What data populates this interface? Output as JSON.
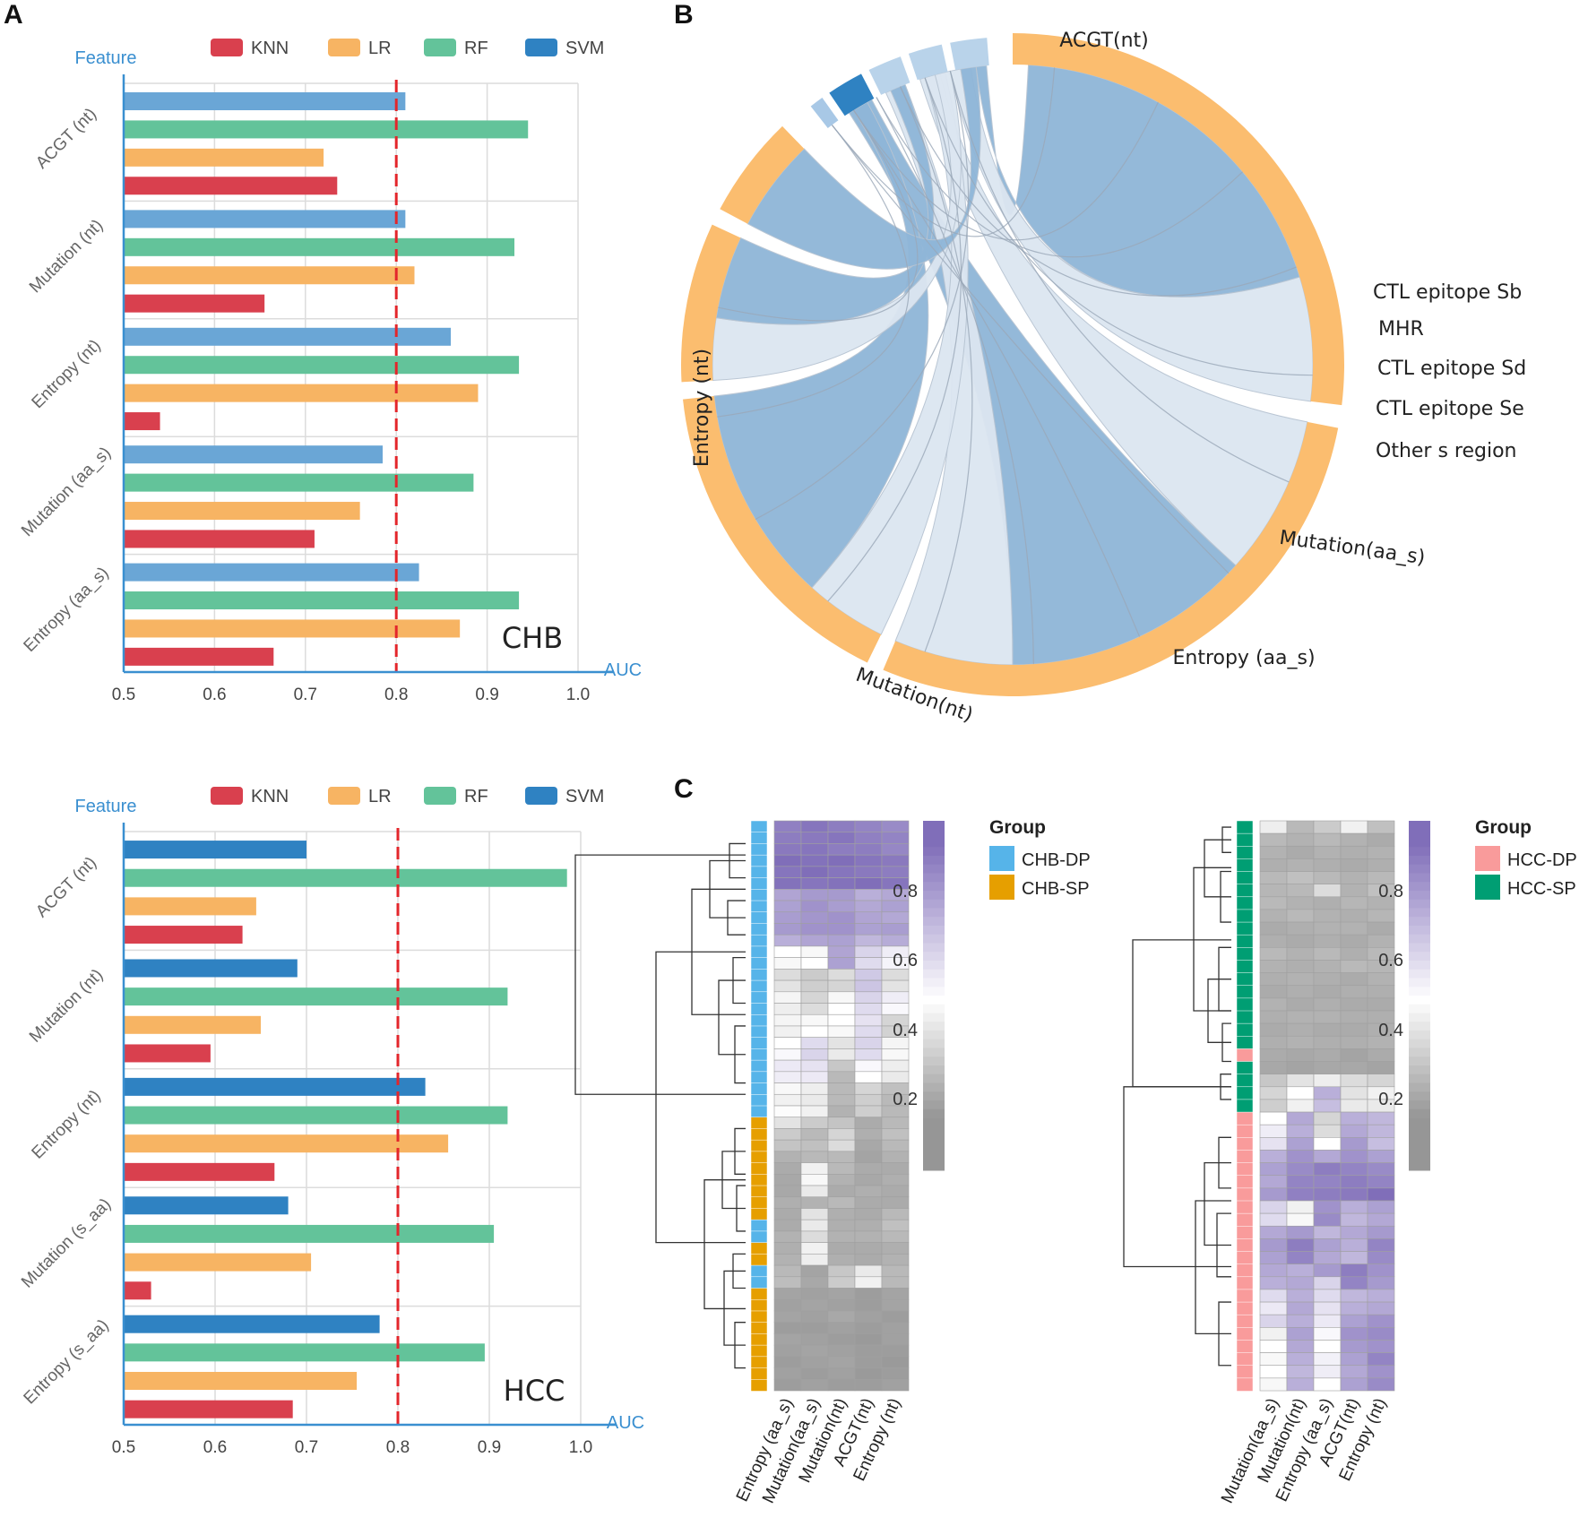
{
  "panel_labels": {
    "a": "A",
    "b": "B",
    "c": "C"
  },
  "colors": {
    "KNN": "#d9404e",
    "LR": "#f7b463",
    "RF": "#63c39a",
    "SVM": "#2f82c2",
    "SVM_light": "#6aa6d6",
    "axis": "#3a8fd0",
    "threshold": "#e3262b",
    "ring": "#fbbd6f",
    "chord_dark": "#8fb6d8",
    "chord_light": "#dce6f1",
    "CHB-DP": "#56b4e9",
    "CHB-SP": "#e69f00",
    "HCC-DP": "#f99b9b",
    "HCC-SP": "#009e73"
  },
  "chart_data": [
    {
      "id": "A1",
      "type": "bar",
      "orientation": "horizontal",
      "annotation": "CHB",
      "ylabel": "Feature",
      "xlabel": "AUC",
      "xlim": [
        0.5,
        1.0
      ],
      "xticks": [
        "0.5",
        "0.6",
        "0.7",
        "0.8",
        "0.9",
        "1.0"
      ],
      "threshold": 0.8,
      "legend": [
        "KNN",
        "LR",
        "RF",
        "SVM"
      ],
      "categories": [
        "ACGT (nt)",
        "Mutation (nt)",
        "Entropy (nt)",
        "Mutation (aa_s)",
        "Entropy (aa_s)"
      ],
      "series": [
        {
          "name": "SVM",
          "values": [
            0.81,
            0.81,
            0.86,
            0.785,
            0.825
          ]
        },
        {
          "name": "RF",
          "values": [
            0.945,
            0.93,
            0.935,
            0.885,
            0.935
          ]
        },
        {
          "name": "LR",
          "values": [
            0.72,
            0.82,
            0.89,
            0.76,
            0.87
          ]
        },
        {
          "name": "KNN",
          "values": [
            0.735,
            0.655,
            0.54,
            0.71,
            0.665
          ]
        }
      ]
    },
    {
      "id": "A2",
      "type": "bar",
      "orientation": "horizontal",
      "annotation": "HCC",
      "ylabel": "Feature",
      "xlabel": "AUC",
      "xlim": [
        0.5,
        1.0
      ],
      "xticks": [
        "0.5",
        "0.6",
        "0.7",
        "0.8",
        "0.9",
        "1.0"
      ],
      "threshold": 0.8,
      "legend": [
        "KNN",
        "LR",
        "RF",
        "SVM"
      ],
      "categories": [
        "ACGT (nt)",
        "Mutation (nt)",
        "Entropy (nt)",
        "Mutation (s_aa)",
        "Entropy (s_aa)"
      ],
      "series": [
        {
          "name": "SVM",
          "values": [
            0.7,
            0.69,
            0.83,
            0.68,
            0.78
          ]
        },
        {
          "name": "RF",
          "values": [
            0.985,
            0.92,
            0.92,
            0.905,
            0.895
          ]
        },
        {
          "name": "LR",
          "values": [
            0.645,
            0.65,
            0.855,
            0.705,
            0.755
          ]
        },
        {
          "name": "KNN",
          "values": [
            0.63,
            0.595,
            0.665,
            0.53,
            0.685
          ]
        }
      ]
    },
    {
      "id": "B",
      "type": "chord",
      "source_sectors": [
        {
          "label": "ACGT(nt)",
          "start": 0,
          "end": 97
        },
        {
          "label": "Entropy (nt)",
          "start": 101,
          "end": 203
        },
        {
          "label": "Mutation(nt)",
          "start": 206,
          "end": 264
        },
        {
          "label": "Entropy (aa_s)",
          "start": 267,
          "end": 295
        },
        {
          "label": "Mutation(aa_s)",
          "start": 298,
          "end": 316
        }
      ],
      "target_sectors": [
        {
          "label": "CTL epitope Sb",
          "start": 322,
          "end": 324.5,
          "color": "#a8c8e6"
        },
        {
          "label": "MHR",
          "start": 326,
          "end": 332.5,
          "color": "#2f82c2"
        },
        {
          "label": "CTL epitope Sd",
          "start": 334,
          "end": 340,
          "color": "#b9d3ea"
        },
        {
          "label": "CTL epitope Se",
          "start": 341.5,
          "end": 347.5,
          "color": "#b9d3ea"
        },
        {
          "label": "Other s region",
          "start": 349,
          "end": 355.5,
          "color": "#b9d3ea"
        }
      ],
      "chords": [
        {
          "a": [
            3,
            73
          ],
          "b": [
            353,
            355
          ],
          "dark": true
        },
        {
          "a": [
            73,
            97
          ],
          "b": [
            348,
            352
          ],
          "dark": false
        },
        {
          "a": [
            101,
            132
          ],
          "b": [
            342,
            346
          ],
          "dark": false
        },
        {
          "a": [
            132,
            180
          ],
          "b": [
            327,
            332
          ],
          "dark": true
        },
        {
          "a": [
            180,
            203
          ],
          "b": [
            335,
            339
          ],
          "dark": false
        },
        {
          "a": [
            206,
            222
          ],
          "b": [
            343,
            347
          ],
          "dark": false
        },
        {
          "a": [
            222,
            264
          ],
          "b": [
            328,
            331
          ],
          "dark": true
        },
        {
          "a": [
            267,
            279
          ],
          "b": [
            345,
            348
          ],
          "dark": false
        },
        {
          "a": [
            279,
            295
          ],
          "b": [
            336,
            339
          ],
          "dark": true
        },
        {
          "a": [
            298,
            316
          ],
          "b": [
            350,
            353
          ],
          "dark": true
        }
      ]
    },
    {
      "id": "C1",
      "type": "heatmap",
      "columns": [
        "Entropy (aa_s)",
        "Mutation(aa_s)",
        "Mutation(nt)",
        "ACGT(nt)",
        "Entropy (nt)"
      ],
      "row_groups": [
        "CHB-DP",
        "CHB-DP",
        "CHB-DP",
        "CHB-DP",
        "CHB-DP",
        "CHB-DP",
        "CHB-DP",
        "CHB-DP",
        "CHB-DP",
        "CHB-DP",
        "CHB-DP",
        "CHB-DP",
        "CHB-DP",
        "CHB-DP",
        "CHB-DP",
        "CHB-DP",
        "CHB-DP",
        "CHB-DP",
        "CHB-DP",
        "CHB-DP",
        "CHB-DP",
        "CHB-DP",
        "CHB-DP",
        "CHB-DP",
        "CHB-DP",
        "CHB-DP",
        "CHB-SP",
        "CHB-SP",
        "CHB-SP",
        "CHB-SP",
        "CHB-SP",
        "CHB-SP",
        "CHB-SP",
        "CHB-SP",
        "CHB-SP",
        "CHB-DP",
        "CHB-DP",
        "CHB-SP",
        "CHB-SP",
        "CHB-DP",
        "CHB-DP",
        "CHB-SP",
        "CHB-SP",
        "CHB-SP",
        "CHB-SP",
        "CHB-SP",
        "CHB-SP",
        "CHB-SP",
        "CHB-SP",
        "CHB-SP"
      ],
      "values": [
        [
          0.85,
          0.88,
          0.86,
          0.84,
          0.82
        ],
        [
          0.86,
          0.87,
          0.88,
          0.85,
          0.84
        ],
        [
          0.87,
          0.88,
          0.86,
          0.86,
          0.83
        ],
        [
          0.9,
          0.89,
          0.9,
          0.88,
          0.87
        ],
        [
          0.88,
          0.9,
          0.88,
          0.87,
          0.86
        ],
        [
          0.89,
          0.88,
          0.89,
          0.9,
          0.88
        ],
        [
          0.75,
          0.78,
          0.78,
          0.72,
          0.74
        ],
        [
          0.76,
          0.8,
          0.77,
          0.74,
          0.76
        ],
        [
          0.77,
          0.79,
          0.8,
          0.75,
          0.74
        ],
        [
          0.78,
          0.8,
          0.8,
          0.76,
          0.77
        ],
        [
          0.72,
          0.75,
          0.76,
          0.7,
          0.73
        ],
        [
          0.5,
          0.48,
          0.75,
          0.62,
          0.55
        ],
        [
          0.48,
          0.5,
          0.76,
          0.6,
          0.53
        ],
        [
          0.4,
          0.35,
          0.4,
          0.65,
          0.4
        ],
        [
          0.42,
          0.36,
          0.38,
          0.66,
          0.42
        ],
        [
          0.47,
          0.38,
          0.48,
          0.62,
          0.55
        ],
        [
          0.45,
          0.4,
          0.5,
          0.6,
          0.52
        ],
        [
          0.47,
          0.48,
          0.5,
          0.58,
          0.38
        ],
        [
          0.46,
          0.5,
          0.48,
          0.6,
          0.37
        ],
        [
          0.5,
          0.6,
          0.42,
          0.62,
          0.47
        ],
        [
          0.52,
          0.62,
          0.44,
          0.6,
          0.48
        ],
        [
          0.56,
          0.58,
          0.34,
          0.52,
          0.45
        ],
        [
          0.55,
          0.56,
          0.3,
          0.5,
          0.44
        ],
        [
          0.48,
          0.45,
          0.3,
          0.38,
          0.32
        ],
        [
          0.46,
          0.44,
          0.3,
          0.36,
          0.3
        ],
        [
          0.49,
          0.46,
          0.28,
          0.36,
          0.3
        ],
        [
          0.42,
          0.35,
          0.33,
          0.26,
          0.3
        ],
        [
          0.35,
          0.3,
          0.38,
          0.27,
          0.32
        ],
        [
          0.33,
          0.32,
          0.4,
          0.25,
          0.3
        ],
        [
          0.28,
          0.3,
          0.3,
          0.24,
          0.28
        ],
        [
          0.26,
          0.46,
          0.3,
          0.26,
          0.26
        ],
        [
          0.25,
          0.48,
          0.28,
          0.25,
          0.27
        ],
        [
          0.25,
          0.44,
          0.26,
          0.27,
          0.26
        ],
        [
          0.27,
          0.28,
          0.3,
          0.26,
          0.26
        ],
        [
          0.26,
          0.42,
          0.27,
          0.26,
          0.3
        ],
        [
          0.26,
          0.44,
          0.27,
          0.27,
          0.32
        ],
        [
          0.28,
          0.4,
          0.28,
          0.28,
          0.3
        ],
        [
          0.27,
          0.46,
          0.26,
          0.26,
          0.27
        ],
        [
          0.28,
          0.45,
          0.27,
          0.26,
          0.28
        ],
        [
          0.3,
          0.24,
          0.34,
          0.44,
          0.3
        ],
        [
          0.31,
          0.25,
          0.35,
          0.46,
          0.3
        ],
        [
          0.24,
          0.23,
          0.24,
          0.22,
          0.24
        ],
        [
          0.23,
          0.24,
          0.23,
          0.22,
          0.24
        ],
        [
          0.24,
          0.23,
          0.25,
          0.23,
          0.22
        ],
        [
          0.22,
          0.22,
          0.23,
          0.22,
          0.23
        ],
        [
          0.24,
          0.23,
          0.22,
          0.21,
          0.23
        ],
        [
          0.23,
          0.24,
          0.23,
          0.22,
          0.22
        ],
        [
          0.22,
          0.23,
          0.24,
          0.22,
          0.21
        ],
        [
          0.23,
          0.22,
          0.23,
          0.21,
          0.22
        ],
        [
          0.22,
          0.23,
          0.22,
          0.22,
          0.23
        ]
      ],
      "legend_ticks": [
        "0.8",
        "0.6",
        "0.4",
        "0.2"
      ],
      "legend_title": "Group",
      "legend_groups": [
        "CHB-DP",
        "CHB-SP"
      ]
    },
    {
      "id": "C2",
      "type": "heatmap",
      "columns": [
        "Mutation(aa_s)",
        "Mutation(nt)",
        "Entropy (aa_s)",
        "ACGT(nt)",
        "Entropy (nt)"
      ],
      "row_groups": [
        "HCC-SP",
        "HCC-SP",
        "HCC-SP",
        "HCC-SP",
        "HCC-SP",
        "HCC-SP",
        "HCC-SP",
        "HCC-SP",
        "HCC-SP",
        "HCC-SP",
        "HCC-SP",
        "HCC-SP",
        "HCC-SP",
        "HCC-SP",
        "HCC-SP",
        "HCC-SP",
        "HCC-SP",
        "HCC-SP",
        "HCC-DP",
        "HCC-SP",
        "HCC-SP",
        "HCC-SP",
        "HCC-SP",
        "HCC-DP",
        "HCC-DP",
        "HCC-DP",
        "HCC-DP",
        "HCC-DP",
        "HCC-DP",
        "HCC-DP",
        "HCC-DP",
        "HCC-DP",
        "HCC-DP",
        "HCC-DP",
        "HCC-DP",
        "HCC-DP",
        "HCC-DP",
        "HCC-DP",
        "HCC-DP",
        "HCC-DP",
        "HCC-DP",
        "HCC-DP",
        "HCC-DP",
        "HCC-DP",
        "HCC-DP"
      ],
      "values": [
        [
          0.45,
          0.3,
          0.35,
          0.46,
          0.32
        ],
        [
          0.3,
          0.28,
          0.3,
          0.28,
          0.26
        ],
        [
          0.28,
          0.26,
          0.28,
          0.27,
          0.28
        ],
        [
          0.27,
          0.28,
          0.27,
          0.26,
          0.27
        ],
        [
          0.3,
          0.32,
          0.3,
          0.28,
          0.3
        ],
        [
          0.29,
          0.3,
          0.4,
          0.28,
          0.32
        ],
        [
          0.3,
          0.28,
          0.27,
          0.29,
          0.28
        ],
        [
          0.28,
          0.3,
          0.28,
          0.27,
          0.29
        ],
        [
          0.26,
          0.27,
          0.28,
          0.28,
          0.26
        ],
        [
          0.27,
          0.26,
          0.27,
          0.26,
          0.28
        ],
        [
          0.3,
          0.28,
          0.3,
          0.27,
          0.3
        ],
        [
          0.28,
          0.27,
          0.28,
          0.3,
          0.29
        ],
        [
          0.27,
          0.28,
          0.27,
          0.26,
          0.28
        ],
        [
          0.26,
          0.27,
          0.26,
          0.27,
          0.27
        ],
        [
          0.28,
          0.26,
          0.27,
          0.26,
          0.26
        ],
        [
          0.27,
          0.28,
          0.28,
          0.27,
          0.27
        ],
        [
          0.26,
          0.27,
          0.26,
          0.26,
          0.27
        ],
        [
          0.27,
          0.28,
          0.27,
          0.27,
          0.28
        ],
        [
          0.26,
          0.25,
          0.26,
          0.24,
          0.26
        ],
        [
          0.25,
          0.24,
          0.25,
          0.25,
          0.24
        ],
        [
          0.34,
          0.42,
          0.45,
          0.4,
          0.38
        ],
        [
          0.38,
          0.5,
          0.72,
          0.42,
          0.46
        ],
        [
          0.36,
          0.46,
          0.68,
          0.44,
          0.44
        ],
        [
          0.5,
          0.74,
          0.38,
          0.72,
          0.7
        ],
        [
          0.55,
          0.72,
          0.4,
          0.74,
          0.7
        ],
        [
          0.58,
          0.76,
          0.5,
          0.78,
          0.68
        ],
        [
          0.72,
          0.8,
          0.74,
          0.8,
          0.76
        ],
        [
          0.76,
          0.82,
          0.86,
          0.84,
          0.82
        ],
        [
          0.74,
          0.84,
          0.84,
          0.86,
          0.84
        ],
        [
          0.78,
          0.85,
          0.86,
          0.87,
          0.9
        ],
        [
          0.62,
          0.46,
          0.8,
          0.72,
          0.76
        ],
        [
          0.6,
          0.48,
          0.82,
          0.7,
          0.74
        ],
        [
          0.74,
          0.78,
          0.7,
          0.74,
          0.78
        ],
        [
          0.78,
          0.86,
          0.76,
          0.72,
          0.84
        ],
        [
          0.76,
          0.84,
          0.74,
          0.7,
          0.82
        ],
        [
          0.74,
          0.72,
          0.78,
          0.86,
          0.8
        ],
        [
          0.72,
          0.74,
          0.62,
          0.84,
          0.78
        ],
        [
          0.6,
          0.72,
          0.6,
          0.7,
          0.72
        ],
        [
          0.56,
          0.74,
          0.58,
          0.72,
          0.74
        ],
        [
          0.62,
          0.72,
          0.56,
          0.76,
          0.8
        ],
        [
          0.46,
          0.76,
          0.52,
          0.8,
          0.82
        ],
        [
          0.5,
          0.74,
          0.5,
          0.78,
          0.8
        ],
        [
          0.48,
          0.72,
          0.54,
          0.76,
          0.84
        ],
        [
          0.5,
          0.7,
          0.55,
          0.74,
          0.8
        ],
        [
          0.48,
          0.72,
          0.5,
          0.76,
          0.82
        ]
      ],
      "legend_ticks": [
        "0.8",
        "0.6",
        "0.4",
        "0.2"
      ],
      "legend_title": "Group",
      "legend_groups": [
        "HCC-DP",
        "HCC-SP"
      ]
    }
  ]
}
